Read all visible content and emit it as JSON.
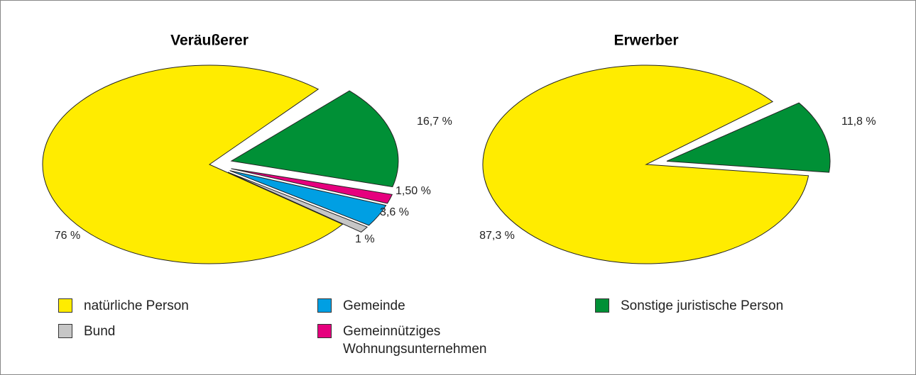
{
  "chart_data": [
    {
      "type": "pie",
      "title": "Veräußerer",
      "values": [
        16.7,
        1.5,
        3.6,
        1,
        76
      ],
      "value_labels": [
        "16,7 %",
        "1,50 %",
        "3,6 %",
        "1 %",
        "76 %"
      ],
      "colors": [
        "#009036",
        "#e6007e",
        "#009fe3",
        "#c6c6c6",
        "#ffec00"
      ]
    },
    {
      "type": "pie",
      "title": "Erwerber",
      "values": [
        11.8,
        87.3
      ],
      "value_labels": [
        "11,8 %",
        "87,3 %"
      ],
      "colors": [
        "#009036",
        "#ffec00"
      ]
    }
  ],
  "legend": [
    {
      "name": "natürliche Person",
      "color": "#ffec00"
    },
    {
      "name": "Gemeinde",
      "color": "#009fe3"
    },
    {
      "name": "Sonstige juristische Person",
      "color": "#009036"
    },
    {
      "name": "Bund",
      "color": "#c6c6c6"
    },
    {
      "name": "Gemeinnütziges Wohnungsunternehmen",
      "color": "#e6007e"
    }
  ]
}
